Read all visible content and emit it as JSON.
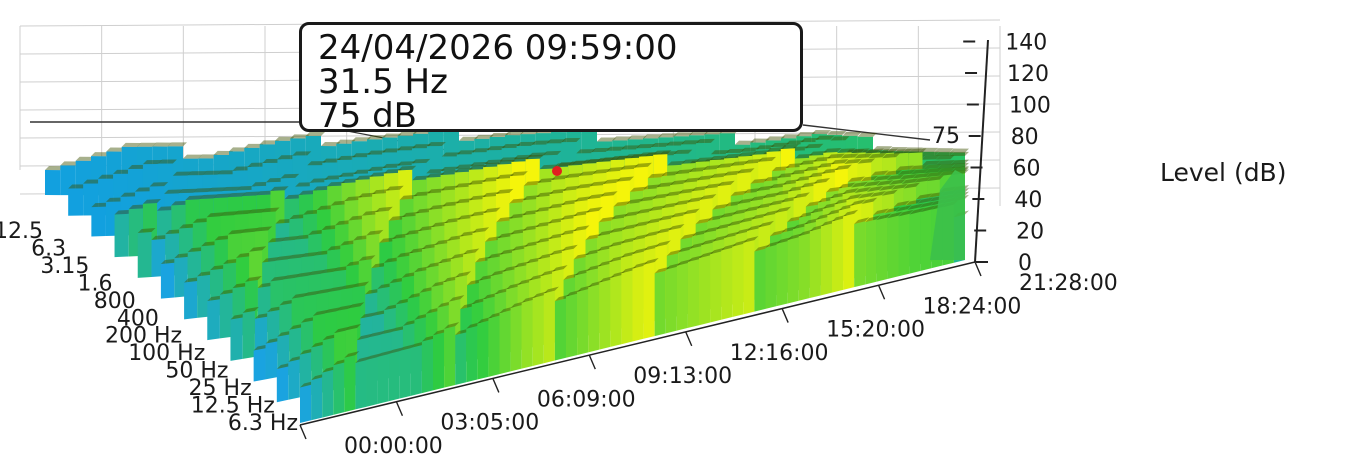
{
  "tooltip": {
    "timestamp": "24/04/2026 09:59:00",
    "frequency": "31.5 Hz",
    "level": "75 dB"
  },
  "colors": {
    "low": "#1aa3e0",
    "mid": "#2ecc40",
    "high": "#f5f50a",
    "marker": "#e02020",
    "grid": "#cfcfcf"
  },
  "chart_data": {
    "type": "3d-surface",
    "title": "",
    "zlabel": "Level (dB)",
    "zlim": [
      0,
      140
    ],
    "z_ticks": [
      "0",
      "20",
      "40",
      "60",
      "80",
      "100",
      "120",
      "140"
    ],
    "z_axis_marker": "75",
    "time_ticks": [
      "00:00:00",
      "03:05:00",
      "06:09:00",
      "09:13:00",
      "12:16:00",
      "15:20:00",
      "18:24:00",
      "21:28:00"
    ],
    "freq_ticks": [
      "6.3 Hz",
      "12.5 Hz",
      "25 Hz",
      "50 Hz",
      "100 Hz",
      "200 Hz",
      "400 Hz",
      "800 Hz",
      "1.6 kHz",
      "3.15 kHz",
      "6.3 kHz",
      "12.5 kHz"
    ],
    "freq_ticks_shown": [
      "6.3 Hz",
      "12.5 Hz",
      "25 Hz",
      "50 Hz",
      "100 Hz",
      "200 Hz",
      "400",
      "800",
      "1.6",
      "3.15",
      "6.3",
      "12.5"
    ],
    "levels_by_time_front_row": [
      50,
      62,
      58,
      66,
      70,
      72,
      74,
      73,
      72,
      71,
      74,
      66,
      60
    ],
    "highlight": {
      "time": "09:59:00",
      "frequency": "31.5 Hz",
      "level": 75
    }
  }
}
